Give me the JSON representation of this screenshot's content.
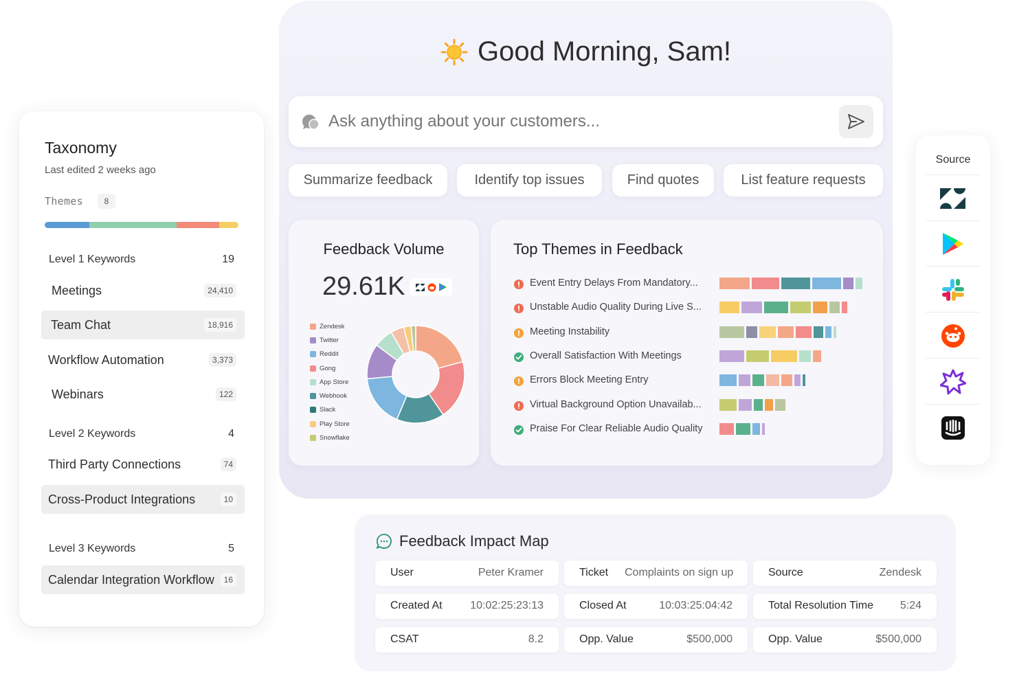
{
  "taxonomy": {
    "title": "Taxonomy",
    "subtitle": "Last edited 2 weeks ago",
    "themes_label": "Themes",
    "themes_count": "8",
    "bar_colors": [
      "#5b9bd5",
      "#8fcfae",
      "#f28b78",
      "#f6cf62"
    ],
    "level1": {
      "label": "Level 1 Keywords",
      "count": "19"
    },
    "level1_items": [
      {
        "label": "Meetings",
        "count": "24,410",
        "selected": false
      },
      {
        "label": "Team Chat",
        "count": "18,916",
        "selected": true
      },
      {
        "label": "Workflow Automation",
        "count": "3,373",
        "selected": false
      },
      {
        "label": "Webinars",
        "count": "122",
        "selected": false
      }
    ],
    "level2": {
      "label": "Level 2 Keywords",
      "count": "4"
    },
    "level2_items": [
      {
        "label": "Third Party Connections",
        "count": "74",
        "selected": false
      },
      {
        "label": "Cross-Product Integrations",
        "count": "10",
        "selected": true
      }
    ],
    "level3": {
      "label": "Level 3 Keywords",
      "count": "5"
    },
    "level3_items": [
      {
        "label": "Calendar Integration Workflow",
        "count": "16",
        "selected": true
      }
    ]
  },
  "header": {
    "greeting": "Good Morning, Sam!",
    "greeting_icon": "sun-icon"
  },
  "search": {
    "placeholder": "Ask anything about your customers..."
  },
  "chips": [
    "Summarize feedback",
    "Identify top issues",
    "Find quotes",
    "List feature requests"
  ],
  "feedback_volume": {
    "title": "Feedback Volume",
    "total": "29.61K",
    "source_icons": [
      "zendesk-icon",
      "reddit-icon",
      "play-store-icon"
    ]
  },
  "chart_data": {
    "type": "pie",
    "categories": [
      "Zendesk",
      "Twitter",
      "Reddit",
      "Gong",
      "App Store",
      "Webhook",
      "Slack",
      "Play Store",
      "Snowflake"
    ],
    "values": [
      20.4,
      19.3,
      15.5,
      16.9,
      11.4,
      6.3,
      4.3,
      2.4,
      1.5
    ],
    "colors": [
      "#f4a788",
      "#f28b8b",
      "#4f9599",
      "#7db6df",
      "#a58bc7",
      "#b7e0cc",
      "#f4c0a8",
      "#f7cc80",
      "#b9c7a0"
    ],
    "legend_colors": [
      "#f4a788",
      "#a58bc7",
      "#7db6df",
      "#f28b8b",
      "#b7e0cc",
      "#4f9599",
      "#2f7a78",
      "#f7cc80",
      "#c5cc70"
    ],
    "donut": true,
    "legend_position": "left"
  },
  "top_themes": {
    "title": "Top Themes in Feedback",
    "rows": [
      {
        "label": "Event Entry Delays From Mandatory...",
        "status": "error",
        "segments": [
          {
            "c": "#f4a788",
            "w": 0.21
          },
          {
            "c": "#f28b8b",
            "w": 0.19
          },
          {
            "c": "#4f9599",
            "w": 0.2
          },
          {
            "c": "#7db6df",
            "w": 0.2
          },
          {
            "c": "#a58bc7",
            "w": 0.07
          },
          {
            "c": "#b7e0cc",
            "w": 0.05
          }
        ]
      },
      {
        "label": "Unstable Audio Quality During Live S...",
        "status": "error",
        "segments": [
          {
            "c": "#f7cc62",
            "w": 0.14
          },
          {
            "c": "#c0a6d8",
            "w": 0.14
          },
          {
            "c": "#5bb08c",
            "w": 0.17
          },
          {
            "c": "#c5cc70",
            "w": 0.14
          },
          {
            "c": "#f2a04c",
            "w": 0.1
          },
          {
            "c": "#b9c7a0",
            "w": 0.07
          },
          {
            "c": "#f28b8b",
            "w": 0.04
          }
        ]
      },
      {
        "label": "Meeting Instability",
        "status": "warning",
        "segments": [
          {
            "c": "#b9c7a0",
            "w": 0.17
          },
          {
            "c": "#8e8ea6",
            "w": 0.08
          },
          {
            "c": "#f7d27a",
            "w": 0.11
          },
          {
            "c": "#f4a788",
            "w": 0.11
          },
          {
            "c": "#f28b8b",
            "w": 0.11
          },
          {
            "c": "#4f9599",
            "w": 0.07
          },
          {
            "c": "#7db6df",
            "w": 0.04
          },
          {
            "c": "#b7e0cc",
            "w": 0.02
          }
        ]
      },
      {
        "label": "Overall Satisfaction With Meetings",
        "status": "success",
        "segments": [
          {
            "c": "#c0a6d8",
            "w": 0.17
          },
          {
            "c": "#c5cc70",
            "w": 0.16
          },
          {
            "c": "#f7cc62",
            "w": 0.18
          },
          {
            "c": "#b7e0cc",
            "w": 0.08
          },
          {
            "c": "#f4a788",
            "w": 0.06
          }
        ]
      },
      {
        "label": "Errors Block Meeting Entry",
        "status": "warning",
        "segments": [
          {
            "c": "#7db6df",
            "w": 0.12
          },
          {
            "c": "#c0a6d8",
            "w": 0.08
          },
          {
            "c": "#5bb08c",
            "w": 0.08
          },
          {
            "c": "#f4b9a0",
            "w": 0.09
          },
          {
            "c": "#f4a788",
            "w": 0.08
          },
          {
            "c": "#c0a6d8",
            "w": 0.04
          },
          {
            "c": "#4f9599",
            "w": 0.02
          }
        ]
      },
      {
        "label": "Virtual Background Option Unavailab...",
        "status": "error",
        "segments": [
          {
            "c": "#c5cc70",
            "w": 0.12
          },
          {
            "c": "#c0a6d8",
            "w": 0.09
          },
          {
            "c": "#5bb08c",
            "w": 0.06
          },
          {
            "c": "#f2a04c",
            "w": 0.06
          },
          {
            "c": "#b9c7a0",
            "w": 0.07
          }
        ]
      },
      {
        "label": "Praise For Clear Reliable Audio Quality",
        "status": "success",
        "segments": [
          {
            "c": "#f28b8b",
            "w": 0.1
          },
          {
            "c": "#5bb08c",
            "w": 0.1
          },
          {
            "c": "#7db6df",
            "w": 0.05
          },
          {
            "c": "#c0a6d8",
            "w": 0.02
          }
        ]
      }
    ]
  },
  "source": {
    "title": "Source",
    "icons": [
      "zendesk-icon",
      "play-store-icon",
      "slack-icon",
      "reddit-icon",
      "star-burst-icon",
      "intercom-icon"
    ]
  },
  "impact": {
    "title": "Feedback Impact Map",
    "cells": [
      {
        "key": "User",
        "value": "Peter Kramer"
      },
      {
        "key": "Ticket",
        "value": "Complaints on sign up"
      },
      {
        "key": "Source",
        "value": "Zendesk"
      },
      {
        "key": "Created At",
        "value": "10:02:25:23:13"
      },
      {
        "key": "Closed At",
        "value": "10:03:25:04:42"
      },
      {
        "key": "Total Resolution Time",
        "value": "5:24"
      },
      {
        "key": "CSAT",
        "value": "8.2"
      },
      {
        "key": "Opp. Value",
        "value": "$500,000"
      },
      {
        "key": "Opp. Value",
        "value": "$500,000"
      }
    ]
  }
}
